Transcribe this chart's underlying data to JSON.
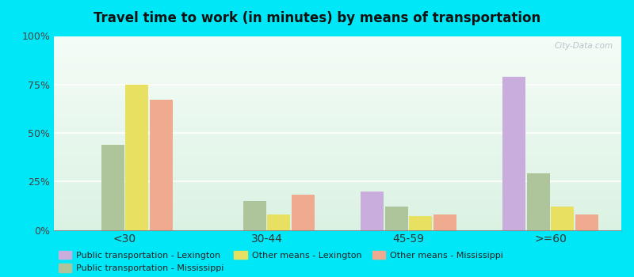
{
  "title": "Travel time to work (in minutes) by means of transportation",
  "categories": [
    "<30",
    "30-44",
    "45-59",
    ">=60"
  ],
  "series": [
    {
      "name": "Public transportation - Lexington",
      "color": "#c9aedd",
      "values": [
        0,
        0,
        20,
        79
      ]
    },
    {
      "name": "Public transportation - Mississippi",
      "color": "#aec49a",
      "values": [
        44,
        15,
        12,
        29
      ]
    },
    {
      "name": "Other means - Lexington",
      "color": "#e8e060",
      "values": [
        75,
        8,
        7,
        12
      ]
    },
    {
      "name": "Other means - Mississippi",
      "color": "#f0aa90",
      "values": [
        67,
        18,
        8,
        8
      ]
    }
  ],
  "ylim": [
    0,
    100
  ],
  "yticks": [
    0,
    25,
    50,
    75,
    100
  ],
  "yticklabels": [
    "0%",
    "25%",
    "50%",
    "75%",
    "100%"
  ],
  "chart_bg_top": "#f0faf5",
  "chart_bg_bottom": "#d8f0e0",
  "outer_background": "#00e8f8",
  "grid_color": "#e0eeea",
  "bar_width": 0.17,
  "watermark": "City-Data.com",
  "title_fontsize": 12,
  "legend_order": [
    0,
    1,
    2,
    3
  ]
}
